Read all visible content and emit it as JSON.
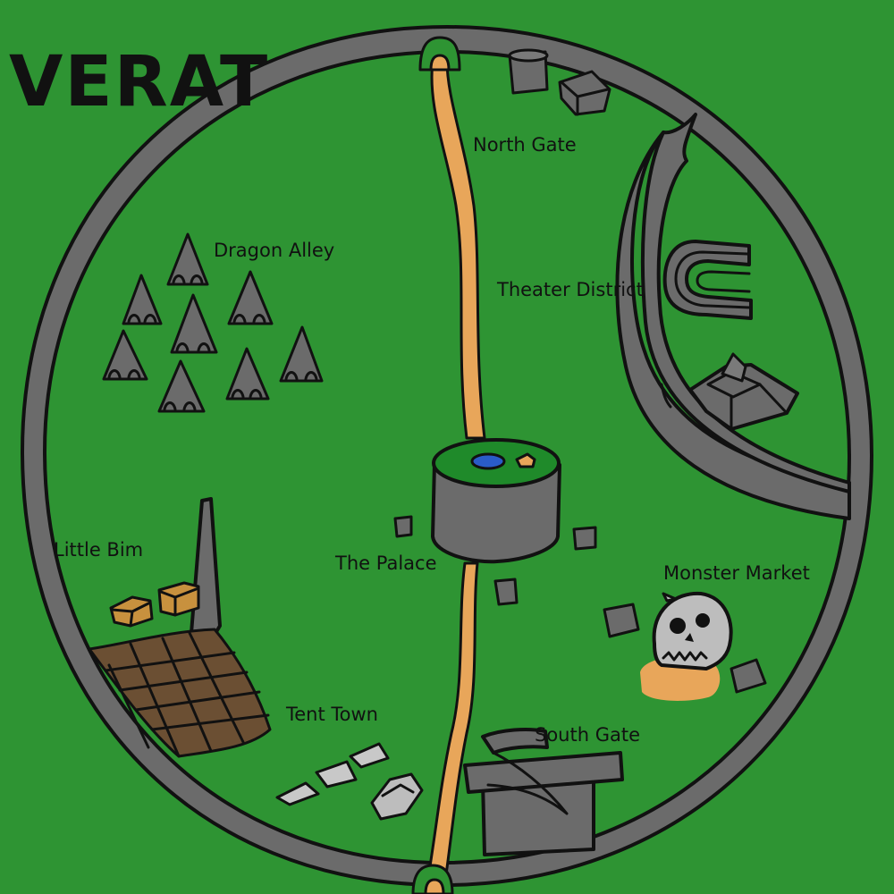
{
  "map": {
    "title": "VERAT",
    "labels": {
      "north_gate": "North Gate",
      "theater_district": "Theater District",
      "dragon_alley": "Dragon Alley",
      "the_palace": "The Palace",
      "little_bim": "Little Bim",
      "monster_market": "Monster Market",
      "tent_town": "Tent Town",
      "south_gate": "South Gate"
    },
    "colors": {
      "grass": "#2e9433",
      "wall": "#6b6b6b",
      "road": "#e8a65a",
      "water": "#2a5cc8",
      "farm": "#6b4f33",
      "outline": "#111111"
    }
  }
}
